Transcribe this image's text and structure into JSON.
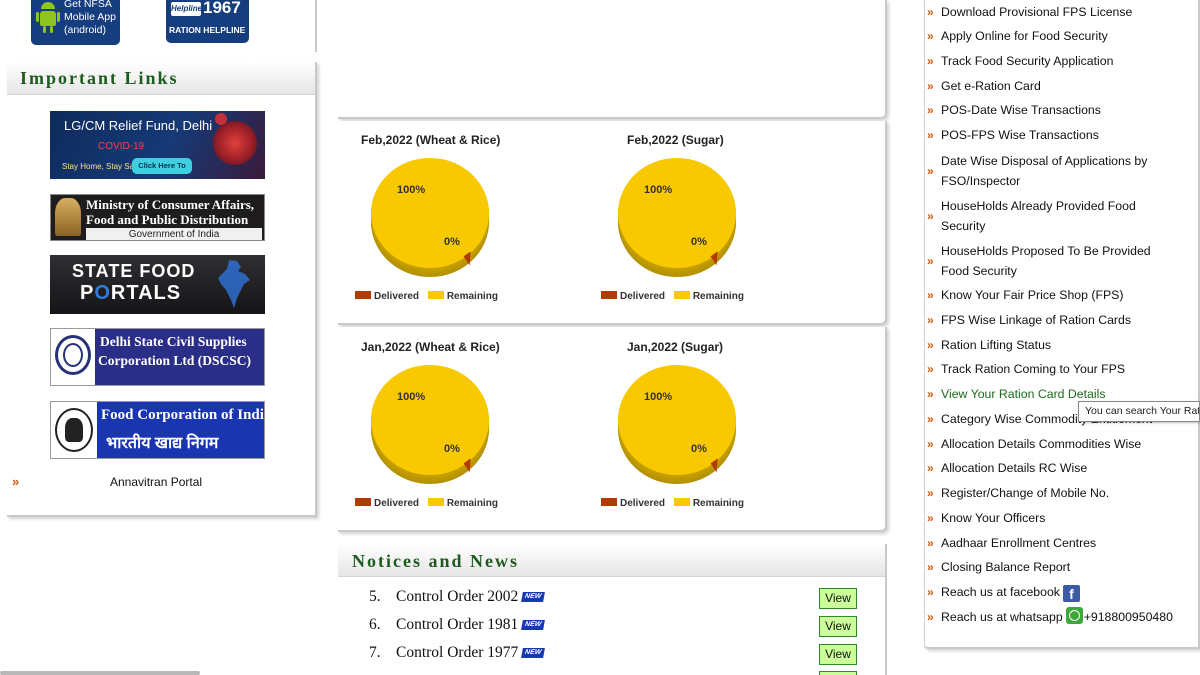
{
  "apps": {
    "nfsa_line1": "Get NFSA",
    "nfsa_line2": "Mobile App",
    "nfsa_line3": "(android)",
    "helpline_badge": "Helpline",
    "helpline_number": "1967",
    "helpline_label": "RATION HELPLINE"
  },
  "important_links": {
    "title": "Important Links",
    "relief": {
      "line1": "LG/CM Relief Fund, Delhi",
      "line2": "COVID-19",
      "line3": "Stay Home, Stay Safe",
      "donate": "Click Here To Donate"
    },
    "ministry": {
      "line1": "Ministry of Consumer Affairs,",
      "line2": "Food and Public Distribution",
      "line3": "Government of India"
    },
    "state_portals": {
      "line1": "STATE FOOD",
      "line2_a": "P",
      "line2_o": "O",
      "line2_b": "RTALS"
    },
    "dscsc": {
      "line1": "Delhi State Civil Supplies",
      "line2": "Corporation Ltd (DSCSC)"
    },
    "fci": {
      "line1": "Food Corporation of India",
      "line2": "भारतीय खाद्य निगम"
    },
    "annavitran": "Annavitran Portal",
    "arrow": "»"
  },
  "chart_data": [
    {
      "type": "pie",
      "title": "Feb,2022 (Wheat & Rice)",
      "labels": [
        "Delivered",
        "Remaining"
      ],
      "values": [
        0,
        100
      ],
      "data_labels": [
        "0%",
        "100%"
      ],
      "colors": [
        "#b33a00",
        "#f8c800"
      ]
    },
    {
      "type": "pie",
      "title": "Feb,2022 (Sugar)",
      "labels": [
        "Delivered",
        "Remaining"
      ],
      "values": [
        0,
        100
      ],
      "data_labels": [
        "0%",
        "100%"
      ],
      "colors": [
        "#b33a00",
        "#f8c800"
      ]
    },
    {
      "type": "pie",
      "title": "Jan,2022 (Wheat & Rice)",
      "labels": [
        "Delivered",
        "Remaining"
      ],
      "values": [
        0,
        100
      ],
      "data_labels": [
        "0%",
        "100%"
      ],
      "colors": [
        "#b33a00",
        "#f8c800"
      ]
    },
    {
      "type": "pie",
      "title": "Jan,2022 (Sugar)",
      "labels": [
        "Delivered",
        "Remaining"
      ],
      "values": [
        0,
        100
      ],
      "data_labels": [
        "0%",
        "100%"
      ],
      "colors": [
        "#b33a00",
        "#f8c800"
      ]
    }
  ],
  "notices": {
    "title": "Notices and News",
    "new_badge": "NEW",
    "items": [
      {
        "num": "5.",
        "text": "Control Order 2002",
        "action": "View"
      },
      {
        "num": "6.",
        "text": "Control Order 1981",
        "action": "View"
      },
      {
        "num": "7.",
        "text": "Control Order 1977",
        "action": "View"
      }
    ]
  },
  "right_links": {
    "arrow": "»",
    "items": [
      "Download Provisional FPS License",
      "Apply Online for Food Security",
      "Track Food Security Application",
      "Get e-Ration Card",
      "POS-Date Wise Transactions",
      "POS-FPS Wise Transactions",
      "Date Wise Disposal of Applications by FSO/Inspector",
      "HouseHolds Already Provided Food Security",
      "HouseHolds Proposed To Be Provided Food Security",
      "Know Your Fair Price Shop (FPS)",
      "FPS Wise Linkage of Ration Cards",
      "Ration Lifting Status",
      "Track Ration Coming to Your FPS",
      "View Your Ration Card Details",
      "Category Wise Commodity Entitlement",
      "Allocation Details Commodities Wise",
      "Allocation Details RC Wise",
      "Register/Change of Mobile No.",
      "Know Your Officers",
      "Aadhaar Enrollment Centres",
      "Closing Balance Report",
      "Reach us at facebook",
      "Reach us at whatsapp",
      "+918800950480"
    ],
    "fb_glyph": "f"
  },
  "tooltip": "You can search Your Ration Card"
}
